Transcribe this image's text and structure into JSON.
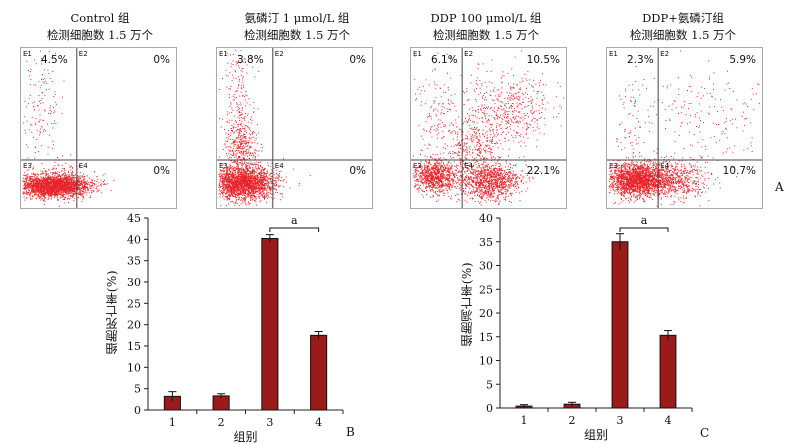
{
  "flow_panels": [
    {
      "title": "Control 组",
      "subtitle": "检测细胞数 1.5 万个",
      "q": {
        "E1": "4.5%",
        "E2": "0%",
        "E3": "",
        "E4": "0%"
      },
      "profile": "control"
    },
    {
      "title": "氨磷汀 1 μmol/L 组",
      "subtitle": "检测细胞数 1.5 万个",
      "q": {
        "E1": "3.8%",
        "E2": "0%",
        "E3": "",
        "E4": "0%"
      },
      "profile": "amif"
    },
    {
      "title": "DDP 100 μmol/L 组",
      "subtitle": "检测细胞数 1.5 万个",
      "q": {
        "E1": "6.1%",
        "E2": "10.5%",
        "E3": "",
        "E4": "22.1%"
      },
      "profile": "ddp"
    },
    {
      "title": "DDP+氨磷汀组",
      "subtitle": "检测细胞数 1.5 万个",
      "q": {
        "E1": "2.3%",
        "E2": "5.9%",
        "E3": "",
        "E4": "10.7%"
      },
      "profile": "combo"
    }
  ],
  "quadrant_names": [
    "E1",
    "E2",
    "E3",
    "E4"
  ],
  "panel_letters": {
    "a": "A",
    "b": "B",
    "c": "C"
  },
  "colors": {
    "dots": "#e8232a",
    "bar": "#9b1b1b",
    "axis": "#333333"
  },
  "chart_data": [
    {
      "type": "bar",
      "panel": "B",
      "categories": [
        "1",
        "2",
        "3",
        "4"
      ],
      "values": [
        3.2,
        3.3,
        40.2,
        17.5
      ],
      "errors": [
        1.1,
        0.5,
        0.9,
        0.9
      ],
      "xlabel": "组别",
      "ylabel": "细胞死亡率(%)",
      "ylim": [
        0,
        45
      ],
      "yticks": [
        0,
        5,
        10,
        15,
        20,
        25,
        30,
        35,
        40,
        45
      ],
      "annotation": {
        "text": "a",
        "from": 3,
        "to": 4
      }
    },
    {
      "type": "bar",
      "panel": "C",
      "categories": [
        "1",
        "2",
        "3",
        "4"
      ],
      "values": [
        0.4,
        0.8,
        35.0,
        15.3
      ],
      "errors": [
        0.3,
        0.4,
        1.7,
        1.0
      ],
      "xlabel": "组别",
      "ylabel": "细胞凋亡率(%)",
      "ylim": [
        0,
        40
      ],
      "yticks": [
        0,
        5,
        10,
        15,
        20,
        25,
        30,
        35,
        40
      ],
      "annotation": {
        "text": "a",
        "from": 3,
        "to": 4
      }
    }
  ]
}
